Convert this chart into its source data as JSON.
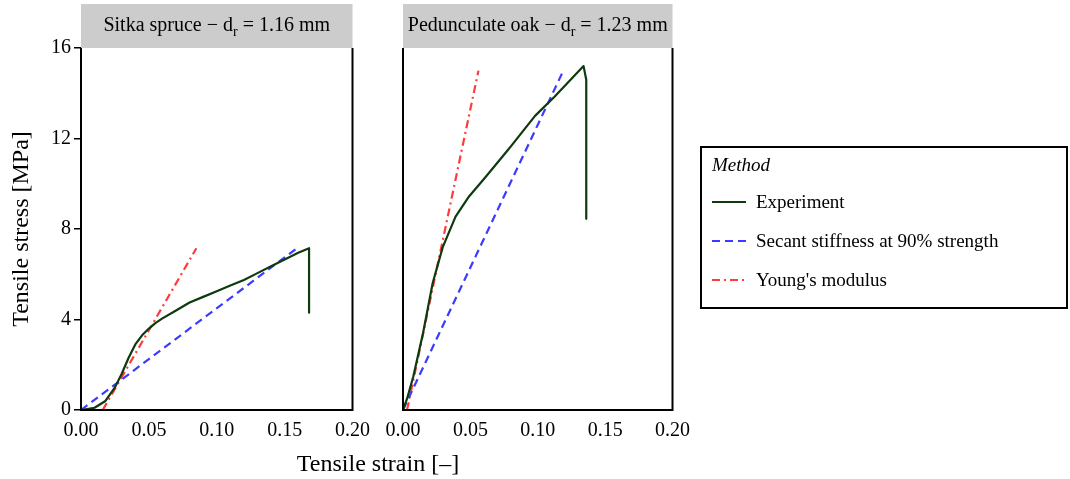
{
  "chart_data": [
    {
      "type": "line",
      "title": "Sitka spruce − d$_{r}$ = 1.16 mm",
      "legend_title": "Method",
      "xlabel": "Tensile strain [–]",
      "ylabel": "Tensile stress [MPa]",
      "xlim": [
        0,
        0.2
      ],
      "xticks": [
        {
          "value": 0,
          "label": "0.00"
        },
        {
          "value": 0.05,
          "label": "0.05"
        },
        {
          "value": 0.1,
          "label": "0.10"
        },
        {
          "value": 0.15,
          "label": "0.15"
        },
        {
          "value": 0.2,
          "label": "0.20"
        }
      ],
      "ylim": [
        0,
        16
      ],
      "yticks": [
        0,
        4,
        8,
        12,
        16
      ],
      "grid": false,
      "legend": "right",
      "series": [
        {
          "name": "Experiment",
          "color": "#0d3b0d",
          "line_style": "solid",
          "x": [
            0,
            0.01,
            0.018,
            0.025,
            0.03,
            0.035,
            0.04,
            0.045,
            0.05,
            0.055,
            0.06,
            0.07,
            0.08,
            0.09,
            0.1,
            0.11,
            0.12,
            0.13,
            0.14,
            0.15,
            0.16,
            0.168,
            0.168
          ],
          "values": [
            0,
            0.1,
            0.4,
            1.0,
            1.6,
            2.3,
            2.9,
            3.3,
            3.6,
            3.85,
            4.05,
            4.4,
            4.75,
            5.0,
            5.25,
            5.5,
            5.75,
            6.05,
            6.35,
            6.65,
            6.95,
            7.15,
            4.3
          ]
        },
        {
          "name": "Secant stiffness at 90% strength",
          "color": "#3b3bff",
          "line_style": "dashed",
          "x": [
            0,
            0.159
          ],
          "values": [
            0,
            7.15
          ]
        },
        {
          "name": "Young's modulus",
          "color": "#ff3b3b",
          "line_style": "dashdot",
          "x": [
            0.016,
            0.085
          ],
          "values": [
            0,
            7.15
          ]
        }
      ]
    },
    {
      "type": "line",
      "title": "Pedunculate oak − d$_{r}$ = 1.23 mm",
      "xlim": [
        0,
        0.2
      ],
      "xticks": [
        {
          "value": 0,
          "label": "0.00"
        },
        {
          "value": 0.05,
          "label": "0.05"
        },
        {
          "value": 0.1,
          "label": "0.10"
        },
        {
          "value": 0.15,
          "label": "0.15"
        },
        {
          "value": 0.2,
          "label": "0.20"
        }
      ],
      "ylim": [
        0,
        16
      ],
      "yticks": [
        0,
        4,
        8,
        12,
        16
      ],
      "grid": false,
      "tick_labels": "x",
      "series": [
        {
          "color": "#0d3b0d",
          "line_style": "solid",
          "x": [
            0,
            0.003,
            0.0076,
            0.0149,
            0.022,
            0.0295,
            0.039,
            0.049,
            0.0613,
            0.078,
            0.098,
            0.1126,
            0.134,
            0.136,
            0.136
          ],
          "values": [
            0,
            0.5,
            1.47,
            3.4,
            5.6,
            7.2,
            8.55,
            9.44,
            10.3,
            11.5,
            13.0,
            13.86,
            15.2,
            14.6,
            8.45
          ]
        },
        {
          "color": "#3b3bff",
          "line_style": "dashed",
          "x": [
            0,
            0.119
          ],
          "values": [
            0,
            15.0
          ]
        },
        {
          "color": "#ff3b3b",
          "line_style": "dashdot",
          "x": [
            0.003,
            0.056
          ],
          "values": [
            0,
            15.0
          ]
        }
      ]
    }
  ]
}
